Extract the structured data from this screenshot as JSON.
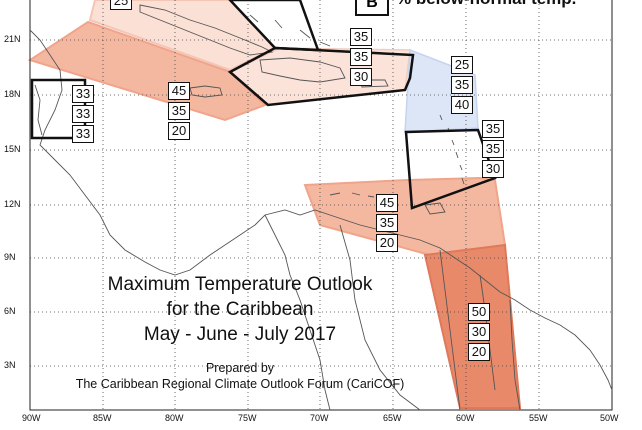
{
  "legend": {
    "letter": "B",
    "text": "% below-normal temp."
  },
  "title": {
    "line1": "Maximum Temperature Outlook",
    "line2": "for the Caribbean",
    "line3": "May - June - July 2017"
  },
  "credit": {
    "line1": "Prepared by",
    "line2": "The Caribbean Regional Climate Outlook Forum (CariCOF)"
  },
  "axes": {
    "y_ticks": [
      "21N",
      "18N",
      "15N",
      "12N",
      "9N",
      "6N",
      "3N"
    ],
    "x_ticks": [
      "90W",
      "85W",
      "80W",
      "75W",
      "70W",
      "65W",
      "60W",
      "55W",
      "50W"
    ]
  },
  "forecast_boxes": [
    {
      "region": "Cuba",
      "values": [
        "25"
      ]
    },
    {
      "region": "Belize",
      "values": [
        "33",
        "33",
        "33"
      ]
    },
    {
      "region": "Jamaica / Cayman",
      "values": [
        "45",
        "35",
        "20"
      ]
    },
    {
      "region": "Hispaniola / Puerto Rico",
      "values": [
        "35",
        "35",
        "30"
      ]
    },
    {
      "region": "Leeward Islands",
      "values": [
        "25",
        "35",
        "40"
      ]
    },
    {
      "region": "Windward Islands",
      "values": [
        "35",
        "35",
        "30"
      ]
    },
    {
      "region": "ABC Islands / Trinidad",
      "values": [
        "45",
        "35",
        "20"
      ]
    },
    {
      "region": "Guianas",
      "values": [
        "50",
        "30",
        "20"
      ]
    }
  ],
  "colors": {
    "above_45": "#f4b8a0",
    "above_50": "#e8896a",
    "above_light": "#fbe0d6",
    "below_light": "#dde6f7",
    "land_line": "#555555",
    "grid": "#444444"
  }
}
